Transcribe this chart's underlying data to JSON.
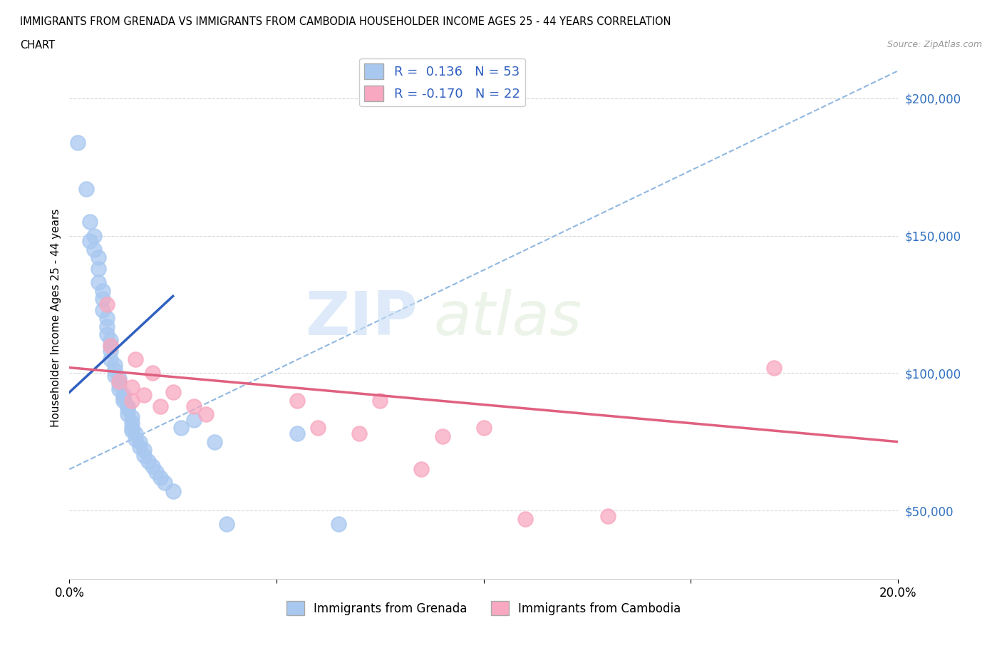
{
  "title_line1": "IMMIGRANTS FROM GRENADA VS IMMIGRANTS FROM CAMBODIA HOUSEHOLDER INCOME AGES 25 - 44 YEARS CORRELATION",
  "title_line2": "CHART",
  "source": "Source: ZipAtlas.com",
  "ylabel": "Householder Income Ages 25 - 44 years",
  "xlim": [
    0.0,
    0.2
  ],
  "ylim": [
    25000,
    215000
  ],
  "yticks": [
    50000,
    100000,
    150000,
    200000
  ],
  "ytick_labels": [
    "$50,000",
    "$100,000",
    "$150,000",
    "$200,000"
  ],
  "xticks": [
    0.0,
    0.05,
    0.1,
    0.15,
    0.2
  ],
  "xtick_labels": [
    "0.0%",
    "",
    "",
    "",
    "20.0%"
  ],
  "watermark_zip": "ZIP",
  "watermark_atlas": "atlas",
  "grenada_R": 0.136,
  "grenada_N": 53,
  "cambodia_R": -0.17,
  "cambodia_N": 22,
  "grenada_color": "#a8c8f0",
  "cambodia_color": "#f8a8c0",
  "grenada_line_color": "#3060c0",
  "cambodia_line_color": "#e06080",
  "trend_line_color": "#90b8e0",
  "grenada_x": [
    0.002,
    0.004,
    0.005,
    0.005,
    0.006,
    0.006,
    0.007,
    0.007,
    0.007,
    0.008,
    0.008,
    0.008,
    0.009,
    0.009,
    0.009,
    0.01,
    0.01,
    0.01,
    0.01,
    0.011,
    0.011,
    0.011,
    0.012,
    0.012,
    0.012,
    0.013,
    0.013,
    0.013,
    0.014,
    0.014,
    0.014,
    0.015,
    0.015,
    0.015,
    0.015,
    0.016,
    0.016,
    0.017,
    0.017,
    0.018,
    0.018,
    0.019,
    0.02,
    0.021,
    0.022,
    0.023,
    0.025,
    0.027,
    0.03,
    0.035,
    0.038,
    0.055,
    0.065
  ],
  "grenada_y": [
    184000,
    167000,
    155000,
    148000,
    150000,
    145000,
    142000,
    138000,
    133000,
    130000,
    127000,
    123000,
    120000,
    117000,
    114000,
    112000,
    110000,
    108000,
    105000,
    103000,
    101000,
    99000,
    98000,
    96000,
    94000,
    92000,
    91000,
    90000,
    88000,
    87000,
    85000,
    84000,
    82000,
    80000,
    79000,
    78000,
    76000,
    75000,
    73000,
    72000,
    70000,
    68000,
    66000,
    64000,
    62000,
    60000,
    57000,
    80000,
    83000,
    75000,
    45000,
    78000,
    45000
  ],
  "cambodia_x": [
    0.009,
    0.01,
    0.012,
    0.015,
    0.015,
    0.016,
    0.018,
    0.02,
    0.022,
    0.025,
    0.03,
    0.033,
    0.055,
    0.06,
    0.07,
    0.075,
    0.085,
    0.09,
    0.1,
    0.11,
    0.13,
    0.17
  ],
  "cambodia_y": [
    125000,
    110000,
    97000,
    95000,
    90000,
    105000,
    92000,
    100000,
    88000,
    93000,
    88000,
    85000,
    90000,
    80000,
    78000,
    90000,
    65000,
    77000,
    80000,
    47000,
    48000,
    102000
  ],
  "grenada_line_x": [
    0.0,
    0.025
  ],
  "grenada_line_y": [
    93000,
    128000
  ],
  "cambodia_line_x": [
    0.0,
    0.2
  ],
  "cambodia_line_y": [
    102000,
    75000
  ],
  "trend_x": [
    0.0,
    0.2
  ],
  "trend_y": [
    65000,
    210000
  ]
}
